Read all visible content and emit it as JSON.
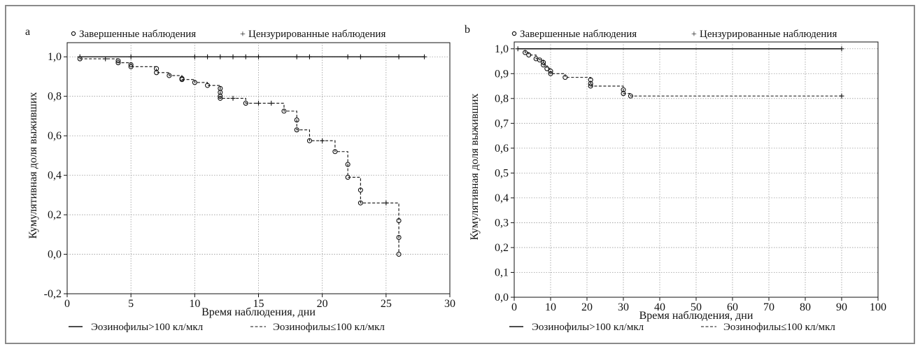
{
  "colors": {
    "frame": "#8a8a8a",
    "grid": "#9a9a9a",
    "line": "#111111",
    "background": "#ffffff"
  },
  "chart_data": [
    {
      "panel_label": "a",
      "type": "line",
      "xlabel": "Время наблюдения, дни",
      "ylabel": "Кумулятивная доля выживших",
      "xlim": [
        0,
        30
      ],
      "ylim": [
        -0.2,
        1.1
      ],
      "x_ticks": [
        0,
        5,
        10,
        15,
        20,
        25,
        30
      ],
      "x_tick_labels": [
        "0",
        "5",
        "10",
        "15",
        "20",
        "25",
        "30"
      ],
      "y_ticks": [
        -0.2,
        0,
        0.2,
        0.4,
        0.6,
        0.8,
        1.0
      ],
      "y_tick_labels": [
        "-0,2",
        "0,0",
        "0,2",
        "0,4",
        "0,6",
        "0,8",
        "1,0"
      ],
      "grid": true,
      "marker_legend": {
        "completed": "Завершенные наблюдения",
        "censored": "Цензурированные наблюдения"
      },
      "series": [
        {
          "name": "Эозинофилы>100 кл/мкл",
          "style": "solid",
          "step_x": [
            1,
            28
          ],
          "step_y": [
            1.0,
            1.0
          ],
          "completed": [],
          "censored": [
            [
              1,
              1.0
            ],
            [
              5,
              1.0
            ],
            [
              10,
              1.0
            ],
            [
              11,
              1.0
            ],
            [
              12,
              1.0
            ],
            [
              13,
              1.0
            ],
            [
              14,
              1.0
            ],
            [
              15,
              1.0
            ],
            [
              18,
              1.0
            ],
            [
              19,
              1.0
            ],
            [
              22,
              1.0
            ],
            [
              23,
              1.0
            ],
            [
              26,
              1.0
            ],
            [
              28,
              1.0
            ]
          ]
        },
        {
          "name": "Эозинофилы≤100 кл/мкл",
          "style": "dashed",
          "step_x": [
            1,
            4,
            5,
            7,
            8,
            9,
            10,
            11,
            12,
            14,
            17,
            18,
            19,
            21,
            22,
            23,
            26
          ],
          "step_y": [
            0.99,
            0.97,
            0.95,
            0.92,
            0.905,
            0.885,
            0.87,
            0.855,
            0.79,
            0.765,
            0.725,
            0.63,
            0.575,
            0.52,
            0.39,
            0.26,
            0.0
          ],
          "completed": [
            [
              1,
              0.99
            ],
            [
              4,
              0.98
            ],
            [
              4,
              0.97
            ],
            [
              5,
              0.96
            ],
            [
              5,
              0.95
            ],
            [
              7,
              0.94
            ],
            [
              7,
              0.92
            ],
            [
              8,
              0.905
            ],
            [
              9,
              0.89
            ],
            [
              9,
              0.885
            ],
            [
              10,
              0.87
            ],
            [
              11,
              0.855
            ],
            [
              12,
              0.84
            ],
            [
              12,
              0.82
            ],
            [
              12,
              0.8
            ],
            [
              12,
              0.79
            ],
            [
              14,
              0.765
            ],
            [
              17,
              0.725
            ],
            [
              18,
              0.68
            ],
            [
              18,
              0.63
            ],
            [
              19,
              0.575
            ],
            [
              21,
              0.52
            ],
            [
              22,
              0.455
            ],
            [
              22,
              0.39
            ],
            [
              23,
              0.325
            ],
            [
              23,
              0.26
            ],
            [
              26,
              0.17
            ],
            [
              26,
              0.085
            ],
            [
              26,
              0.0
            ]
          ],
          "censored": [
            [
              3,
              0.99
            ],
            [
              13,
              0.79
            ],
            [
              15,
              0.765
            ],
            [
              16,
              0.765
            ],
            [
              20,
              0.575
            ],
            [
              25,
              0.26
            ]
          ]
        }
      ]
    },
    {
      "panel_label": "b",
      "type": "line",
      "xlabel": "Время наблюдения, дни",
      "ylabel": "Кумулятивная доля выживших",
      "xlim": [
        0,
        100
      ],
      "ylim": [
        0.0,
        1.05
      ],
      "x_ticks": [
        0,
        10,
        20,
        30,
        40,
        50,
        60,
        70,
        80,
        90,
        100
      ],
      "x_tick_labels": [
        "0",
        "10",
        "20",
        "30",
        "40",
        "50",
        "60",
        "70",
        "80",
        "90",
        "100"
      ],
      "y_ticks": [
        0.0,
        0.1,
        0.2,
        0.3,
        0.4,
        0.5,
        0.6,
        0.7,
        0.8,
        0.9,
        1.0
      ],
      "y_tick_labels": [
        "0,0",
        "0,1",
        "0,2",
        "0,3",
        "0,4",
        "0,5",
        "0,6",
        "0,7",
        "0,8",
        "0,9",
        "1,0"
      ],
      "grid": true,
      "marker_legend": {
        "completed": "Завершенные наблюдения",
        "censored": "Цензурированные наблюдения"
      },
      "series": [
        {
          "name": "Эозинофилы>100 кл/мкл",
          "style": "solid",
          "step_x": [
            1,
            90
          ],
          "step_y": [
            1.0,
            1.0
          ],
          "completed": [],
          "censored": [
            [
              1,
              1.0
            ],
            [
              90,
              1.0
            ]
          ]
        },
        {
          "name": "Эозинофилы≤100 кл/мкл",
          "style": "dashed",
          "step_x": [
            1,
            3,
            4,
            6,
            7,
            8,
            9,
            10,
            14,
            21,
            30,
            32
          ],
          "step_y": [
            1.0,
            0.985,
            0.975,
            0.96,
            0.955,
            0.935,
            0.92,
            0.9,
            0.885,
            0.85,
            0.82,
            0.81
          ],
          "completed": [
            [
              3,
              0.985
            ],
            [
              4,
              0.975
            ],
            [
              6,
              0.96
            ],
            [
              7,
              0.955
            ],
            [
              8,
              0.945
            ],
            [
              8,
              0.935
            ],
            [
              9,
              0.92
            ],
            [
              10,
              0.91
            ],
            [
              10,
              0.9
            ],
            [
              14,
              0.885
            ],
            [
              21,
              0.875
            ],
            [
              21,
              0.86
            ],
            [
              21,
              0.85
            ],
            [
              30,
              0.835
            ],
            [
              30,
              0.82
            ],
            [
              32,
              0.81
            ]
          ],
          "censored": [
            [
              90,
              0.81
            ]
          ]
        }
      ]
    }
  ]
}
